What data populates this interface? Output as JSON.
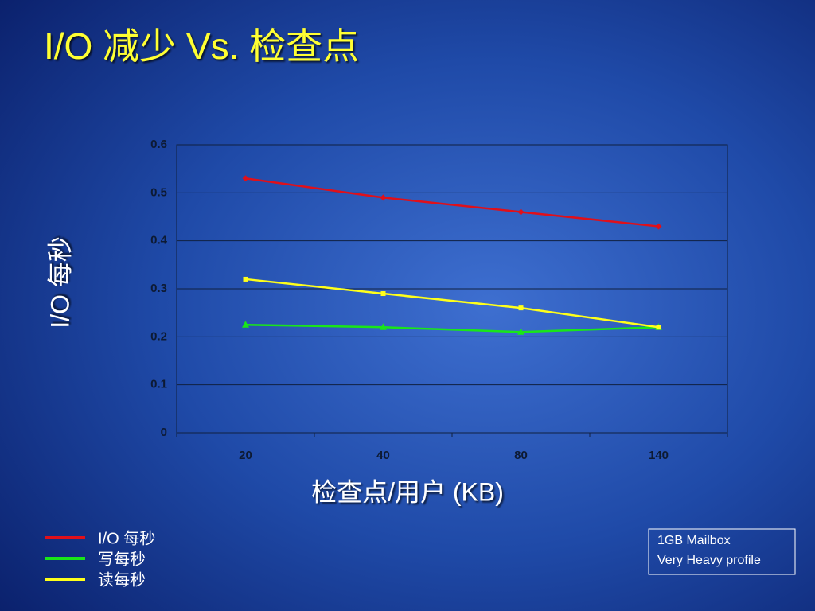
{
  "chart_data": {
    "type": "line",
    "title": "I/O 减少 Vs. 检查点",
    "x_label": "检查点/用户 (KB)",
    "y_label": "I/O 每秒",
    "categories": [
      "20",
      "40",
      "80",
      "140"
    ],
    "series": [
      {
        "name": "I/O 每秒",
        "color": "#e0101a",
        "marker": "diamond",
        "values": [
          0.53,
          0.49,
          0.46,
          0.43
        ]
      },
      {
        "name": "写每秒",
        "color": "#19e619",
        "marker": "triangle",
        "values": [
          0.225,
          0.22,
          0.21,
          0.22
        ]
      },
      {
        "name": "读每秒",
        "color": "#ffff1a",
        "marker": "square",
        "values": [
          0.32,
          0.29,
          0.26,
          0.22
        ]
      }
    ],
    "ylim": [
      0,
      0.6
    ],
    "yticks": [
      0,
      0.1,
      0.2,
      0.3,
      0.4,
      0.5,
      0.6
    ],
    "grid": true,
    "legend": "bottom-left",
    "annotation": [
      "1GB Mailbox",
      "Very Heavy profile"
    ]
  }
}
